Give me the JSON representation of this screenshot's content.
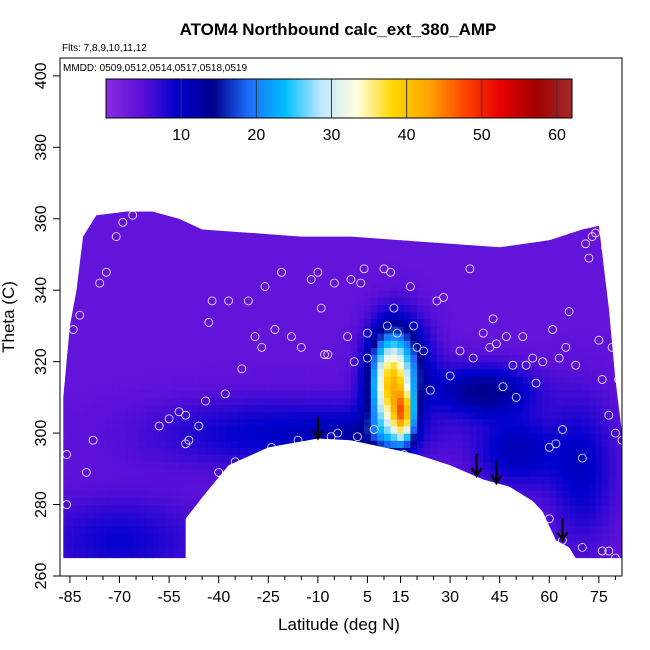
{
  "chart_data": {
    "type": "heatmap",
    "title": "ATOM4 Northbound calc_ext_380_AMP",
    "flights_note": "Flts: 7,8,9,10,11,12",
    "dates_note": "MMDD: 0509,0512,0514,0517,0518,0519",
    "xlabel": "Latitude (deg N)",
    "ylabel": "Theta (C)",
    "xlim": [
      -88,
      82
    ],
    "ylim": [
      260,
      405
    ],
    "x_ticks": [
      -85,
      -70,
      -55,
      -40,
      -25,
      -10,
      5,
      15,
      30,
      45,
      60,
      75
    ],
    "y_ticks": [
      260,
      280,
      300,
      320,
      340,
      360,
      380,
      400
    ],
    "colorbar": {
      "range": [
        0,
        62
      ],
      "ticks": [
        10,
        20,
        30,
        40,
        50,
        60
      ],
      "colors": [
        "#8a2be2",
        "#5b10d8",
        "#0000cd",
        "#00008b",
        "#1e6fff",
        "#00bfff",
        "#bfe6ff",
        "#ffffe0",
        "#ffd700",
        "#ffa500",
        "#ff4500",
        "#e60000",
        "#a00000",
        "#a52a2a"
      ]
    },
    "field": {
      "description_values": "value at grid nodes; x = latitude, y = theta",
      "x": [
        -88,
        -75,
        -60,
        -50,
        -40,
        -30,
        -20,
        -10,
        -5,
        0,
        5,
        10,
        13,
        15,
        18,
        25,
        30,
        35,
        40,
        50,
        60,
        70,
        82
      ],
      "y": [
        260,
        280,
        290,
        300,
        310,
        320,
        330,
        340,
        350,
        360,
        370
      ]
    },
    "data_region": {
      "upper_boundary": [
        [
          -83,
          340
        ],
        [
          -81,
          355
        ],
        [
          -77,
          361
        ],
        [
          -68,
          362
        ],
        [
          -60,
          362
        ],
        [
          -52,
          360
        ],
        [
          -45,
          357
        ],
        [
          -30,
          356
        ],
        [
          -15,
          355
        ],
        [
          0,
          355
        ],
        [
          15,
          354
        ],
        [
          30,
          353
        ],
        [
          45,
          352
        ],
        [
          60,
          354
        ],
        [
          70,
          357
        ],
        [
          75,
          358
        ]
      ],
      "lower_boundary": [
        [
          -87,
          265
        ],
        [
          -50,
          265
        ],
        [
          -50,
          276
        ],
        [
          -45,
          282
        ],
        [
          -37,
          291
        ],
        [
          -25,
          296
        ],
        [
          -10,
          298.5
        ],
        [
          0,
          298
        ],
        [
          10,
          296
        ],
        [
          20,
          294
        ],
        [
          30,
          291
        ],
        [
          40,
          287
        ],
        [
          48,
          285
        ],
        [
          55,
          281
        ],
        [
          58,
          278
        ],
        [
          62,
          270
        ],
        [
          66,
          268
        ],
        [
          68,
          265
        ],
        [
          82,
          265
        ]
      ],
      "right_edge": [
        [
          75,
          358
        ],
        [
          78,
          335
        ],
        [
          80,
          315
        ],
        [
          82,
          300
        ],
        [
          82,
          265
        ]
      ],
      "left_edge": [
        [
          -87,
          265
        ],
        [
          -87,
          310
        ],
        [
          -85,
          330
        ],
        [
          -83,
          340
        ]
      ]
    },
    "observations": [
      [
        -86,
        294
      ],
      [
        -86,
        280
      ],
      [
        -84,
        329
      ],
      [
        -82,
        333
      ],
      [
        -80,
        289
      ],
      [
        -78,
        298
      ],
      [
        -76,
        342
      ],
      [
        -74,
        345
      ],
      [
        -71,
        355
      ],
      [
        -69,
        359
      ],
      [
        -66,
        361
      ],
      [
        -58,
        302
      ],
      [
        -55,
        304
      ],
      [
        -52,
        306
      ],
      [
        -50,
        297
      ],
      [
        -50,
        305
      ],
      [
        -49,
        298
      ],
      [
        -46,
        302
      ],
      [
        -44,
        309
      ],
      [
        -43,
        331
      ],
      [
        -42,
        337
      ],
      [
        -40,
        289
      ],
      [
        -38,
        311
      ],
      [
        -37,
        337
      ],
      [
        -35,
        292
      ],
      [
        -33,
        318
      ],
      [
        -31,
        337
      ],
      [
        -29,
        327
      ],
      [
        -27,
        324
      ],
      [
        -26,
        341
      ],
      [
        -24,
        296
      ],
      [
        -23,
        329
      ],
      [
        -21,
        345
      ],
      [
        -18,
        327
      ],
      [
        -16,
        298
      ],
      [
        -15,
        324
      ],
      [
        -12,
        343
      ],
      [
        -10,
        345
      ],
      [
        -9,
        335
      ],
      [
        -8,
        322
      ],
      [
        -7,
        322
      ],
      [
        -6,
        299
      ],
      [
        -5,
        342
      ],
      [
        -4,
        300
      ],
      [
        0,
        343
      ],
      [
        -1,
        327
      ],
      [
        1,
        320
      ],
      [
        2,
        299
      ],
      [
        3,
        342
      ],
      [
        4,
        346
      ],
      [
        5,
        328
      ],
      [
        5,
        321
      ],
      [
        7,
        301
      ],
      [
        10,
        346
      ],
      [
        11,
        330
      ],
      [
        12,
        345
      ],
      [
        13,
        335
      ],
      [
        14,
        328
      ],
      [
        16,
        294
      ],
      [
        18,
        341
      ],
      [
        19,
        330
      ],
      [
        20,
        324
      ],
      [
        22,
        323
      ],
      [
        24,
        312
      ],
      [
        26,
        337
      ],
      [
        28,
        338
      ],
      [
        30,
        316
      ],
      [
        33,
        323
      ],
      [
        36,
        346
      ],
      [
        37,
        321
      ],
      [
        40,
        328
      ],
      [
        42,
        324
      ],
      [
        43,
        332
      ],
      [
        44,
        325
      ],
      [
        46,
        313
      ],
      [
        47,
        327
      ],
      [
        49,
        319
      ],
      [
        50,
        310
      ],
      [
        52,
        327
      ],
      [
        53,
        319
      ],
      [
        55,
        321
      ],
      [
        56,
        314
      ],
      [
        58,
        320
      ],
      [
        60,
        296
      ],
      [
        61,
        329
      ],
      [
        62,
        297
      ],
      [
        63,
        321
      ],
      [
        64,
        301
      ],
      [
        65,
        324
      ],
      [
        66,
        334
      ],
      [
        68,
        319
      ],
      [
        70,
        293
      ],
      [
        71,
        353
      ],
      [
        72,
        349
      ],
      [
        73,
        355
      ],
      [
        74,
        356
      ],
      [
        75,
        326
      ],
      [
        76,
        315
      ],
      [
        77,
        352
      ],
      [
        78,
        305
      ],
      [
        79,
        324
      ],
      [
        80,
        300
      ],
      [
        81,
        315
      ],
      [
        82,
        298
      ],
      [
        60,
        276
      ],
      [
        64,
        270
      ],
      [
        70,
        268
      ],
      [
        76,
        267
      ],
      [
        78,
        267
      ],
      [
        80,
        265
      ]
    ],
    "arrows_at_lower_edge": [
      {
        "x": -10,
        "y": 298.5
      },
      {
        "x": 38,
        "y": 288
      },
      {
        "x": 44,
        "y": 286
      },
      {
        "x": 64,
        "y": 270
      }
    ]
  }
}
